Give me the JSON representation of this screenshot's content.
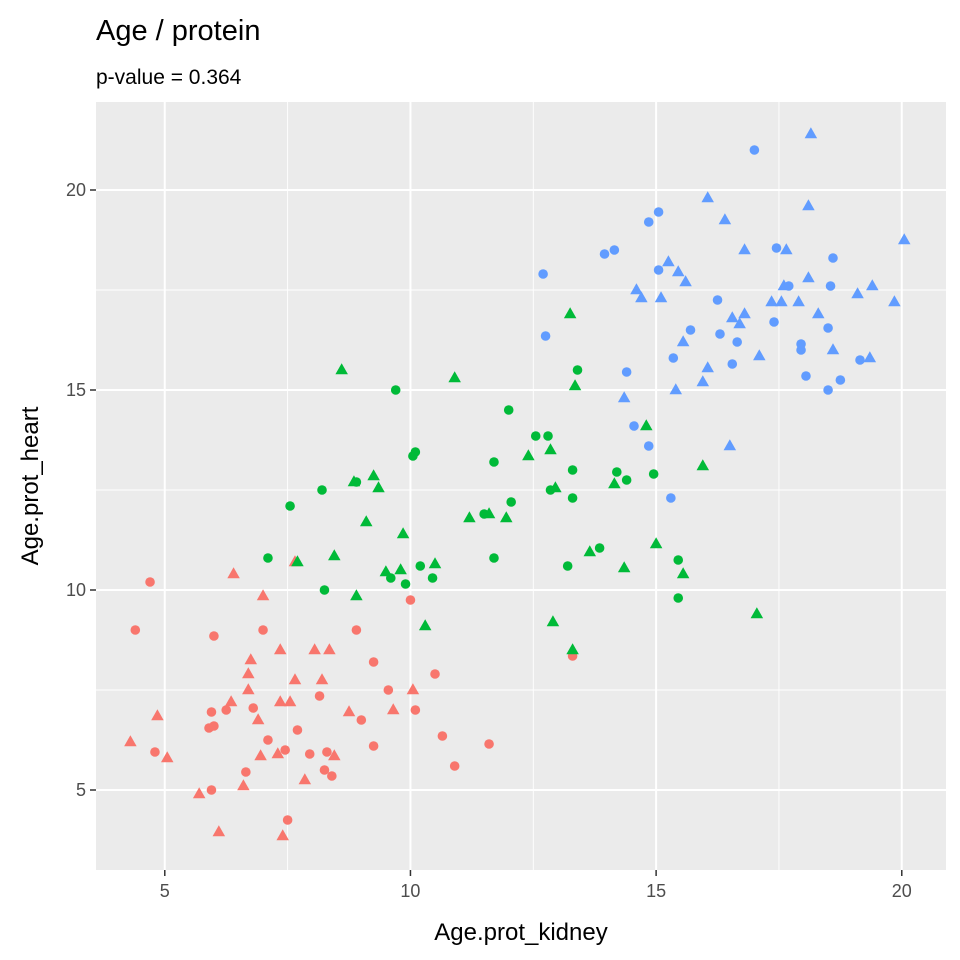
{
  "chart_data": {
    "type": "scatter",
    "title": "Age / protein",
    "subtitle": "p-value = 0.364",
    "xlabel": "Age.prot_kidney",
    "ylabel": "Age.prot_heart",
    "xlim": [
      3.6,
      20.9
    ],
    "ylim": [
      3.0,
      22.2
    ],
    "x_ticks": [
      5,
      10,
      15,
      20
    ],
    "y_ticks": [
      5,
      10,
      15,
      20
    ],
    "grid": true,
    "legend": "none",
    "colors": {
      "red": "#F8766D",
      "green": "#00BA38",
      "blue": "#619CFF"
    },
    "shapes": {
      "circle": "circle",
      "triangle": "triangle"
    },
    "series": [
      {
        "color": "#F8766D",
        "points": [
          {
            "x": 4.7,
            "y": 10.2,
            "s": "circle"
          },
          {
            "x": 4.4,
            "y": 9.0,
            "s": "circle"
          },
          {
            "x": 4.3,
            "y": 6.2,
            "s": "triangle"
          },
          {
            "x": 4.8,
            "y": 5.95,
            "s": "circle"
          },
          {
            "x": 4.85,
            "y": 6.85,
            "s": "triangle"
          },
          {
            "x": 5.05,
            "y": 5.8,
            "s": "triangle"
          },
          {
            "x": 5.7,
            "y": 4.9,
            "s": "triangle"
          },
          {
            "x": 5.95,
            "y": 5.0,
            "s": "circle"
          },
          {
            "x": 5.9,
            "y": 6.55,
            "s": "circle"
          },
          {
            "x": 5.95,
            "y": 6.95,
            "s": "circle"
          },
          {
            "x": 6.0,
            "y": 6.6,
            "s": "circle"
          },
          {
            "x": 6.0,
            "y": 8.85,
            "s": "circle"
          },
          {
            "x": 6.1,
            "y": 3.95,
            "s": "triangle"
          },
          {
            "x": 6.25,
            "y": 7.0,
            "s": "circle"
          },
          {
            "x": 6.35,
            "y": 7.2,
            "s": "triangle"
          },
          {
            "x": 6.4,
            "y": 10.4,
            "s": "triangle"
          },
          {
            "x": 6.6,
            "y": 5.1,
            "s": "triangle"
          },
          {
            "x": 6.65,
            "y": 5.45,
            "s": "circle"
          },
          {
            "x": 6.7,
            "y": 7.5,
            "s": "triangle"
          },
          {
            "x": 6.7,
            "y": 7.9,
            "s": "triangle"
          },
          {
            "x": 6.75,
            "y": 8.25,
            "s": "triangle"
          },
          {
            "x": 6.8,
            "y": 7.05,
            "s": "circle"
          },
          {
            "x": 6.9,
            "y": 6.75,
            "s": "triangle"
          },
          {
            "x": 6.95,
            "y": 5.85,
            "s": "triangle"
          },
          {
            "x": 7.0,
            "y": 9.85,
            "s": "triangle"
          },
          {
            "x": 7.0,
            "y": 9.0,
            "s": "circle"
          },
          {
            "x": 7.1,
            "y": 6.25,
            "s": "circle"
          },
          {
            "x": 7.3,
            "y": 5.9,
            "s": "triangle"
          },
          {
            "x": 7.35,
            "y": 8.5,
            "s": "triangle"
          },
          {
            "x": 7.35,
            "y": 7.2,
            "s": "triangle"
          },
          {
            "x": 7.45,
            "y": 6.0,
            "s": "circle"
          },
          {
            "x": 7.4,
            "y": 3.85,
            "s": "triangle"
          },
          {
            "x": 7.5,
            "y": 4.25,
            "s": "circle"
          },
          {
            "x": 7.55,
            "y": 7.2,
            "s": "triangle"
          },
          {
            "x": 7.65,
            "y": 7.75,
            "s": "triangle"
          },
          {
            "x": 7.65,
            "y": 10.7,
            "s": "triangle"
          },
          {
            "x": 7.7,
            "y": 6.5,
            "s": "circle"
          },
          {
            "x": 7.85,
            "y": 5.25,
            "s": "triangle"
          },
          {
            "x": 7.95,
            "y": 5.9,
            "s": "circle"
          },
          {
            "x": 8.05,
            "y": 8.5,
            "s": "triangle"
          },
          {
            "x": 8.15,
            "y": 7.35,
            "s": "circle"
          },
          {
            "x": 8.2,
            "y": 7.75,
            "s": "triangle"
          },
          {
            "x": 8.25,
            "y": 5.5,
            "s": "circle"
          },
          {
            "x": 8.3,
            "y": 5.95,
            "s": "circle"
          },
          {
            "x": 8.35,
            "y": 8.5,
            "s": "triangle"
          },
          {
            "x": 8.4,
            "y": 5.35,
            "s": "circle"
          },
          {
            "x": 8.45,
            "y": 5.85,
            "s": "triangle"
          },
          {
            "x": 8.75,
            "y": 6.95,
            "s": "triangle"
          },
          {
            "x": 8.9,
            "y": 9.0,
            "s": "circle"
          },
          {
            "x": 9.0,
            "y": 6.75,
            "s": "circle"
          },
          {
            "x": 9.25,
            "y": 8.2,
            "s": "circle"
          },
          {
            "x": 9.25,
            "y": 6.1,
            "s": "circle"
          },
          {
            "x": 9.55,
            "y": 7.5,
            "s": "circle"
          },
          {
            "x": 9.65,
            "y": 7.0,
            "s": "triangle"
          },
          {
            "x": 10.0,
            "y": 9.75,
            "s": "circle"
          },
          {
            "x": 10.05,
            "y": 7.5,
            "s": "triangle"
          },
          {
            "x": 10.1,
            "y": 7.0,
            "s": "circle"
          },
          {
            "x": 10.5,
            "y": 7.9,
            "s": "circle"
          },
          {
            "x": 10.65,
            "y": 6.35,
            "s": "circle"
          },
          {
            "x": 10.9,
            "y": 5.6,
            "s": "circle"
          },
          {
            "x": 11.6,
            "y": 6.15,
            "s": "circle"
          },
          {
            "x": 13.3,
            "y": 8.35,
            "s": "circle"
          }
        ]
      },
      {
        "color": "#00BA38",
        "points": [
          {
            "x": 7.1,
            "y": 10.8,
            "s": "circle"
          },
          {
            "x": 7.55,
            "y": 12.1,
            "s": "circle"
          },
          {
            "x": 7.7,
            "y": 10.7,
            "s": "triangle"
          },
          {
            "x": 8.2,
            "y": 12.5,
            "s": "circle"
          },
          {
            "x": 8.25,
            "y": 10.0,
            "s": "circle"
          },
          {
            "x": 8.45,
            "y": 10.85,
            "s": "triangle"
          },
          {
            "x": 8.6,
            "y": 15.5,
            "s": "triangle"
          },
          {
            "x": 8.85,
            "y": 12.7,
            "s": "triangle"
          },
          {
            "x": 8.9,
            "y": 9.85,
            "s": "triangle"
          },
          {
            "x": 8.9,
            "y": 12.7,
            "s": "circle"
          },
          {
            "x": 9.1,
            "y": 11.7,
            "s": "triangle"
          },
          {
            "x": 9.25,
            "y": 12.85,
            "s": "triangle"
          },
          {
            "x": 9.35,
            "y": 12.55,
            "s": "triangle"
          },
          {
            "x": 9.5,
            "y": 10.45,
            "s": "triangle"
          },
          {
            "x": 9.6,
            "y": 10.3,
            "s": "circle"
          },
          {
            "x": 9.7,
            "y": 15.0,
            "s": "circle"
          },
          {
            "x": 9.8,
            "y": 10.5,
            "s": "triangle"
          },
          {
            "x": 9.85,
            "y": 11.4,
            "s": "triangle"
          },
          {
            "x": 9.9,
            "y": 10.15,
            "s": "circle"
          },
          {
            "x": 10.05,
            "y": 13.35,
            "s": "circle"
          },
          {
            "x": 10.1,
            "y": 13.45,
            "s": "circle"
          },
          {
            "x": 10.2,
            "y": 10.6,
            "s": "circle"
          },
          {
            "x": 10.3,
            "y": 9.1,
            "s": "triangle"
          },
          {
            "x": 10.45,
            "y": 10.3,
            "s": "circle"
          },
          {
            "x": 10.5,
            "y": 10.65,
            "s": "triangle"
          },
          {
            "x": 10.9,
            "y": 15.3,
            "s": "triangle"
          },
          {
            "x": 11.2,
            "y": 11.8,
            "s": "triangle"
          },
          {
            "x": 11.5,
            "y": 11.9,
            "s": "circle"
          },
          {
            "x": 11.6,
            "y": 11.9,
            "s": "triangle"
          },
          {
            "x": 11.7,
            "y": 13.2,
            "s": "circle"
          },
          {
            "x": 11.7,
            "y": 10.8,
            "s": "circle"
          },
          {
            "x": 11.95,
            "y": 11.8,
            "s": "triangle"
          },
          {
            "x": 12.0,
            "y": 14.5,
            "s": "circle"
          },
          {
            "x": 12.05,
            "y": 12.2,
            "s": "circle"
          },
          {
            "x": 12.4,
            "y": 13.35,
            "s": "triangle"
          },
          {
            "x": 12.55,
            "y": 13.85,
            "s": "circle"
          },
          {
            "x": 12.8,
            "y": 13.85,
            "s": "circle"
          },
          {
            "x": 12.85,
            "y": 13.5,
            "s": "triangle"
          },
          {
            "x": 12.85,
            "y": 12.5,
            "s": "circle"
          },
          {
            "x": 12.9,
            "y": 9.2,
            "s": "triangle"
          },
          {
            "x": 12.95,
            "y": 12.55,
            "s": "triangle"
          },
          {
            "x": 13.2,
            "y": 10.6,
            "s": "circle"
          },
          {
            "x": 13.25,
            "y": 16.9,
            "s": "triangle"
          },
          {
            "x": 13.3,
            "y": 13.0,
            "s": "circle"
          },
          {
            "x": 13.3,
            "y": 12.3,
            "s": "circle"
          },
          {
            "x": 13.35,
            "y": 15.1,
            "s": "triangle"
          },
          {
            "x": 13.3,
            "y": 8.5,
            "s": "triangle"
          },
          {
            "x": 13.4,
            "y": 15.5,
            "s": "circle"
          },
          {
            "x": 13.65,
            "y": 10.95,
            "s": "triangle"
          },
          {
            "x": 13.85,
            "y": 11.05,
            "s": "circle"
          },
          {
            "x": 14.15,
            "y": 12.65,
            "s": "triangle"
          },
          {
            "x": 14.2,
            "y": 12.95,
            "s": "circle"
          },
          {
            "x": 14.35,
            "y": 10.55,
            "s": "triangle"
          },
          {
            "x": 14.4,
            "y": 12.75,
            "s": "circle"
          },
          {
            "x": 14.8,
            "y": 14.1,
            "s": "triangle"
          },
          {
            "x": 14.95,
            "y": 12.9,
            "s": "circle"
          },
          {
            "x": 15.0,
            "y": 11.15,
            "s": "triangle"
          },
          {
            "x": 15.45,
            "y": 10.75,
            "s": "circle"
          },
          {
            "x": 15.45,
            "y": 9.8,
            "s": "circle"
          },
          {
            "x": 15.55,
            "y": 10.4,
            "s": "triangle"
          },
          {
            "x": 15.95,
            "y": 13.1,
            "s": "triangle"
          },
          {
            "x": 17.05,
            "y": 9.4,
            "s": "triangle"
          }
        ]
      },
      {
        "color": "#619CFF",
        "points": [
          {
            "x": 12.7,
            "y": 17.9,
            "s": "circle"
          },
          {
            "x": 12.75,
            "y": 16.35,
            "s": "circle"
          },
          {
            "x": 13.95,
            "y": 18.4,
            "s": "circle"
          },
          {
            "x": 14.15,
            "y": 18.5,
            "s": "circle"
          },
          {
            "x": 14.35,
            "y": 14.8,
            "s": "triangle"
          },
          {
            "x": 14.4,
            "y": 15.45,
            "s": "circle"
          },
          {
            "x": 14.55,
            "y": 14.1,
            "s": "circle"
          },
          {
            "x": 14.6,
            "y": 17.5,
            "s": "triangle"
          },
          {
            "x": 14.7,
            "y": 17.3,
            "s": "triangle"
          },
          {
            "x": 14.85,
            "y": 13.6,
            "s": "circle"
          },
          {
            "x": 14.85,
            "y": 19.2,
            "s": "circle"
          },
          {
            "x": 15.05,
            "y": 19.45,
            "s": "circle"
          },
          {
            "x": 15.05,
            "y": 18.0,
            "s": "circle"
          },
          {
            "x": 15.1,
            "y": 17.3,
            "s": "triangle"
          },
          {
            "x": 15.25,
            "y": 18.2,
            "s": "triangle"
          },
          {
            "x": 15.3,
            "y": 12.3,
            "s": "circle"
          },
          {
            "x": 15.35,
            "y": 15.8,
            "s": "circle"
          },
          {
            "x": 15.4,
            "y": 15.0,
            "s": "triangle"
          },
          {
            "x": 15.45,
            "y": 17.95,
            "s": "triangle"
          },
          {
            "x": 15.55,
            "y": 16.2,
            "s": "triangle"
          },
          {
            "x": 15.6,
            "y": 17.7,
            "s": "triangle"
          },
          {
            "x": 15.7,
            "y": 16.5,
            "s": "circle"
          },
          {
            "x": 15.95,
            "y": 15.2,
            "s": "triangle"
          },
          {
            "x": 16.05,
            "y": 15.55,
            "s": "triangle"
          },
          {
            "x": 16.05,
            "y": 19.8,
            "s": "triangle"
          },
          {
            "x": 16.25,
            "y": 17.25,
            "s": "circle"
          },
          {
            "x": 16.3,
            "y": 16.4,
            "s": "circle"
          },
          {
            "x": 16.4,
            "y": 19.25,
            "s": "triangle"
          },
          {
            "x": 16.5,
            "y": 13.6,
            "s": "triangle"
          },
          {
            "x": 16.55,
            "y": 15.65,
            "s": "circle"
          },
          {
            "x": 16.55,
            "y": 16.8,
            "s": "triangle"
          },
          {
            "x": 16.65,
            "y": 16.2,
            "s": "circle"
          },
          {
            "x": 16.7,
            "y": 16.65,
            "s": "triangle"
          },
          {
            "x": 16.8,
            "y": 16.9,
            "s": "triangle"
          },
          {
            "x": 16.8,
            "y": 18.5,
            "s": "triangle"
          },
          {
            "x": 17.0,
            "y": 21.0,
            "s": "circle"
          },
          {
            "x": 17.1,
            "y": 15.85,
            "s": "triangle"
          },
          {
            "x": 17.35,
            "y": 17.2,
            "s": "triangle"
          },
          {
            "x": 17.4,
            "y": 16.7,
            "s": "circle"
          },
          {
            "x": 17.45,
            "y": 18.55,
            "s": "circle"
          },
          {
            "x": 17.55,
            "y": 17.2,
            "s": "triangle"
          },
          {
            "x": 17.6,
            "y": 17.6,
            "s": "triangle"
          },
          {
            "x": 17.65,
            "y": 18.5,
            "s": "triangle"
          },
          {
            "x": 17.7,
            "y": 17.6,
            "s": "circle"
          },
          {
            "x": 17.9,
            "y": 17.2,
            "s": "triangle"
          },
          {
            "x": 17.95,
            "y": 16.0,
            "s": "circle"
          },
          {
            "x": 17.95,
            "y": 16.15,
            "s": "circle"
          },
          {
            "x": 18.05,
            "y": 15.35,
            "s": "circle"
          },
          {
            "x": 18.1,
            "y": 19.6,
            "s": "triangle"
          },
          {
            "x": 18.1,
            "y": 17.8,
            "s": "triangle"
          },
          {
            "x": 18.15,
            "y": 21.4,
            "s": "triangle"
          },
          {
            "x": 18.3,
            "y": 16.9,
            "s": "triangle"
          },
          {
            "x": 18.5,
            "y": 16.55,
            "s": "circle"
          },
          {
            "x": 18.5,
            "y": 15.0,
            "s": "circle"
          },
          {
            "x": 18.55,
            "y": 17.6,
            "s": "circle"
          },
          {
            "x": 18.6,
            "y": 18.3,
            "s": "circle"
          },
          {
            "x": 18.6,
            "y": 16.0,
            "s": "triangle"
          },
          {
            "x": 18.75,
            "y": 15.25,
            "s": "circle"
          },
          {
            "x": 19.1,
            "y": 17.4,
            "s": "triangle"
          },
          {
            "x": 19.15,
            "y": 15.75,
            "s": "circle"
          },
          {
            "x": 19.35,
            "y": 15.8,
            "s": "triangle"
          },
          {
            "x": 19.4,
            "y": 17.6,
            "s": "triangle"
          },
          {
            "x": 19.85,
            "y": 17.2,
            "s": "triangle"
          },
          {
            "x": 20.05,
            "y": 18.75,
            "s": "triangle"
          }
        ]
      }
    ]
  }
}
